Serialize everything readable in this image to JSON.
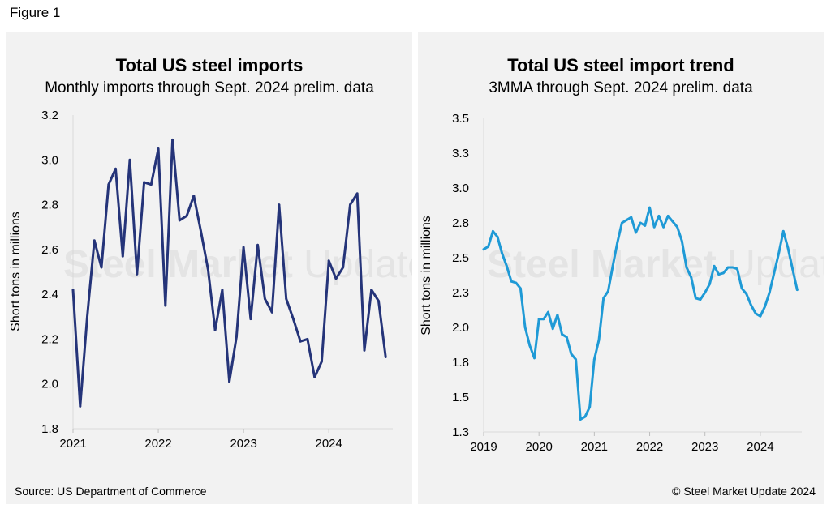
{
  "figure_label": "Figure 1",
  "watermark": {
    "strong": "Steel Market",
    "light": "Update"
  },
  "source": "Source: US Department of Commerce",
  "credit": "© Steel Market Update 2024",
  "colors": {
    "left_line": "#253479",
    "right_line": "#1f9ad6",
    "panel_bg": "#f2f2f2"
  },
  "chart_data": [
    {
      "type": "line",
      "title": "Total US steel imports",
      "subtitle": "Monthly imports through Sept. 2024 prelim. data",
      "ylabel": "Short tons in millions",
      "xlabel": "",
      "ylim": [
        1.8,
        3.2
      ],
      "yticks": [
        1.8,
        2.0,
        2.2,
        2.4,
        2.6,
        2.8,
        3.0,
        3.2
      ],
      "ytick_labels": [
        "1.8",
        "2.0",
        "2.2",
        "2.4",
        "2.6",
        "2.8",
        "3.0",
        "3.2"
      ],
      "xlim": [
        2021.0,
        2024.75
      ],
      "xticks": [
        2021,
        2022,
        2023,
        2024
      ],
      "xtick_labels": [
        "2021",
        "2022",
        "2023",
        "2024"
      ],
      "grid": false,
      "legend": "none",
      "series": [
        {
          "x": [
            "2021-01",
            "2021-02",
            "2021-03",
            "2021-04",
            "2021-05",
            "2021-06",
            "2021-07",
            "2021-08",
            "2021-09",
            "2021-10",
            "2021-11",
            "2021-12",
            "2022-01",
            "2022-02",
            "2022-03",
            "2022-04",
            "2022-05",
            "2022-06",
            "2022-07",
            "2022-08",
            "2022-09",
            "2022-10",
            "2022-11",
            "2022-12",
            "2023-01",
            "2023-02",
            "2023-03",
            "2023-04",
            "2023-05",
            "2023-06",
            "2023-07",
            "2023-08",
            "2023-09",
            "2023-10",
            "2023-11",
            "2023-12",
            "2024-01",
            "2024-02",
            "2024-03",
            "2024-04",
            "2024-05",
            "2024-06",
            "2024-07",
            "2024-08",
            "2024-09"
          ],
          "values": [
            2.42,
            1.9,
            2.3,
            2.64,
            2.52,
            2.89,
            2.96,
            2.57,
            3.0,
            2.49,
            2.9,
            2.89,
            3.05,
            2.35,
            3.09,
            2.73,
            2.75,
            2.84,
            2.68,
            2.51,
            2.24,
            2.42,
            2.01,
            2.21,
            2.61,
            2.29,
            2.62,
            2.38,
            2.32,
            2.8,
            2.38,
            2.29,
            2.19,
            2.2,
            2.03,
            2.1,
            2.55,
            2.47,
            2.52,
            2.8,
            2.85,
            2.15,
            2.42,
            2.37,
            2.12
          ]
        }
      ]
    },
    {
      "type": "line",
      "title": "Total US steel import trend",
      "subtitle": "3MMA through Sept. 2024 prelim. data",
      "ylabel": "Short tons in millions",
      "xlabel": "",
      "ylim": [
        1.3,
        3.5
      ],
      "yticks": [
        1.3,
        1.55,
        1.8,
        2.05,
        2.3,
        2.55,
        2.8,
        3.05,
        3.3,
        3.55
      ],
      "ytick_labels": [
        "1.3",
        "1.5",
        "1.8",
        "2.0",
        "2.3",
        "2.5",
        "2.8",
        "3.0",
        "3.3",
        "3.5"
      ],
      "xlim": [
        2019.0,
        2024.75
      ],
      "xticks": [
        2019,
        2020,
        2021,
        2022,
        2023,
        2024
      ],
      "xtick_labels": [
        "2019",
        "2020",
        "2021",
        "2022",
        "2023",
        "2024"
      ],
      "grid": false,
      "legend": "none",
      "series": [
        {
          "x": [
            "2019-01",
            "2019-02",
            "2019-03",
            "2019-04",
            "2019-05",
            "2019-06",
            "2019-07",
            "2019-08",
            "2019-09",
            "2019-10",
            "2019-11",
            "2019-12",
            "2020-01",
            "2020-02",
            "2020-03",
            "2020-04",
            "2020-05",
            "2020-06",
            "2020-07",
            "2020-08",
            "2020-09",
            "2020-10",
            "2020-11",
            "2020-12",
            "2021-01",
            "2021-02",
            "2021-03",
            "2021-04",
            "2021-05",
            "2021-06",
            "2021-07",
            "2021-08",
            "2021-09",
            "2021-10",
            "2021-11",
            "2021-12",
            "2022-01",
            "2022-02",
            "2022-03",
            "2022-04",
            "2022-05",
            "2022-06",
            "2022-07",
            "2022-08",
            "2022-09",
            "2022-10",
            "2022-11",
            "2022-12",
            "2023-01",
            "2023-02",
            "2023-03",
            "2023-04",
            "2023-05",
            "2023-06",
            "2023-07",
            "2023-08",
            "2023-09",
            "2023-10",
            "2023-11",
            "2023-12",
            "2024-01",
            "2024-02",
            "2024-03",
            "2024-04",
            "2024-05",
            "2024-06",
            "2024-07",
            "2024-08",
            "2024-09"
          ],
          "values": [
            2.61,
            2.63,
            2.74,
            2.7,
            2.58,
            2.49,
            2.38,
            2.37,
            2.33,
            2.05,
            1.92,
            1.83,
            2.11,
            2.11,
            2.16,
            2.04,
            2.14,
            2.0,
            1.98,
            1.86,
            1.82,
            1.39,
            1.41,
            1.48,
            1.82,
            1.96,
            2.26,
            2.31,
            2.49,
            2.66,
            2.8,
            2.82,
            2.84,
            2.73,
            2.8,
            2.78,
            2.91,
            2.77,
            2.85,
            2.77,
            2.85,
            2.81,
            2.77,
            2.67,
            2.48,
            2.41,
            2.26,
            2.25,
            2.3,
            2.36,
            2.49,
            2.43,
            2.44,
            2.48,
            2.48,
            2.47,
            2.33,
            2.29,
            2.21,
            2.15,
            2.13,
            2.2,
            2.3,
            2.44,
            2.58,
            2.74,
            2.62,
            2.47,
            2.32
          ]
        }
      ]
    }
  ]
}
